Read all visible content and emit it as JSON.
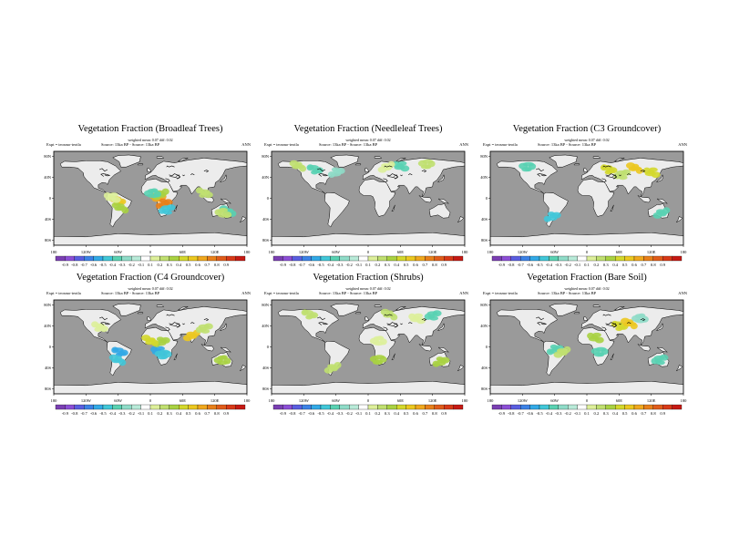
{
  "colors": {
    "ocean": "#9a9a9a",
    "land": "#ececec",
    "scale": [
      "#7b3fb3",
      "#8c4fd6",
      "#5a5ee0",
      "#3c82e6",
      "#32a9e6",
      "#41c7d8",
      "#59d2b2",
      "#8fdcc8",
      "#b8ead8",
      "#ffffff",
      "#ddef9a",
      "#c0e070",
      "#a9d242",
      "#d4d82c",
      "#ecc820",
      "#f0a81e",
      "#e8801a",
      "#e05c1a",
      "#d83a18",
      "#c61a14"
    ]
  },
  "colorbar": {
    "labels": [
      "-0.9",
      "-0.8",
      "-0.7",
      "-0.6",
      "-0.5",
      "-0.4",
      "-0.3",
      "-0.2",
      "-0.1",
      "0.1",
      "0.2",
      "0.3",
      "0.4",
      "0.5",
      "0.6",
      "0.7",
      "0.8",
      "0.9"
    ]
  },
  "axes": {
    "lon_labels": [
      "180",
      "120W",
      "60W",
      "0",
      "60E",
      "120E",
      "180"
    ],
    "lat_labels": [
      "80N",
      "40N",
      "0",
      "40S",
      "80S"
    ]
  },
  "panels": [
    {
      "title": "Vegetation Fraction (Broadleaf Trees)",
      "weights": "weighted mean: 0.07 diff: 0.02",
      "expt": "Expt = teosmo-teotla",
      "sources": "Source:  13ka BP - Source:  13ka BP",
      "season": "ANN"
    },
    {
      "title": "Vegetation Fraction (Needleleaf Trees)",
      "weights": "weighted mean: 0.07 diff: 0.02",
      "expt": "Expt = teosmo-teotla",
      "sources": "Source:  13ka BP - Source:  13ka BP",
      "season": "ANN"
    },
    {
      "title": "Vegetation Fraction (C3 Groundcover)",
      "weights": "weighted mean: 0.07 diff: 0.02",
      "expt": "Expt = teosmo-teotla",
      "sources": "Source:  13ka BP - Source:  13ka BP",
      "season": "ANN"
    },
    {
      "title": "Vegetation Fraction (C4 Groundcover)",
      "weights": "weighted mean: 0.07 diff: 0.02",
      "expt": "Expt = teosmo-teotla",
      "sources": "Source:  13ka BP - Source:  13ka BP",
      "season": "ANN"
    },
    {
      "title": "Vegetation Fraction (Shrubs)",
      "weights": "weighted mean: 0.07 diff: 0.02",
      "expt": "Expt = teosmo-teotla",
      "sources": "Source:  13ka BP - Source:  13ka BP",
      "season": "ANN"
    },
    {
      "title": "Vegetation Fraction (Bare Soil)",
      "weights": "weighted mean: 0.07 diff: 0.02",
      "expt": "Expt = teosmo-teotla",
      "sources": "Source:  13ka BP - Source:  13ka BP",
      "season": "ANN"
    }
  ],
  "patches": [
    [
      {
        "lon": -62,
        "lat": -5,
        "v": 0.6
      },
      {
        "lon": -55,
        "lat": -18,
        "v": 0.4
      },
      {
        "lon": -72,
        "lat": 2,
        "v": 0.2
      },
      {
        "lon": 15,
        "lat": 2,
        "v": 0.7
      },
      {
        "lon": 25,
        "lat": -10,
        "v": 0.8
      },
      {
        "lon": 20,
        "lat": 8,
        "v": 0.4
      },
      {
        "lon": 30,
        "lat": -22,
        "v": -0.4
      },
      {
        "lon": 5,
        "lat": 10,
        "v": -0.3
      },
      {
        "lon": 100,
        "lat": 10,
        "v": 0.3
      },
      {
        "lon": 145,
        "lat": -25,
        "v": -0.3
      },
      {
        "lon": 135,
        "lat": -28,
        "v": 0.3
      }
    ],
    [
      {
        "lon": -100,
        "lat": 55,
        "v": -0.3
      },
      {
        "lon": -130,
        "lat": 62,
        "v": 0.3
      },
      {
        "lon": 60,
        "lat": 62,
        "v": -0.3
      },
      {
        "lon": 110,
        "lat": 65,
        "v": 0.3
      },
      {
        "lon": -60,
        "lat": 50,
        "v": -0.2
      },
      {
        "lon": 35,
        "lat": 60,
        "v": 0.2
      }
    ],
    [
      {
        "lon": 40,
        "lat": 55,
        "v": 0.5
      },
      {
        "lon": 90,
        "lat": 58,
        "v": 0.6
      },
      {
        "lon": 120,
        "lat": 50,
        "v": 0.5
      },
      {
        "lon": -110,
        "lat": 60,
        "v": -0.3
      },
      {
        "lon": -65,
        "lat": -35,
        "v": -0.4
      },
      {
        "lon": 140,
        "lat": -28,
        "v": -0.3
      },
      {
        "lon": 65,
        "lat": 45,
        "v": 0.3
      }
    ],
    [
      {
        "lon": -58,
        "lat": -10,
        "v": -0.5
      },
      {
        "lon": -60,
        "lat": -25,
        "v": -0.4
      },
      {
        "lon": 15,
        "lat": -8,
        "v": -0.5
      },
      {
        "lon": 25,
        "lat": -15,
        "v": -0.4
      },
      {
        "lon": 20,
        "lat": 10,
        "v": 0.4
      },
      {
        "lon": 78,
        "lat": 22,
        "v": 0.6
      },
      {
        "lon": 100,
        "lat": 35,
        "v": 0.3
      },
      {
        "lon": 135,
        "lat": -25,
        "v": 0.4
      },
      {
        "lon": -95,
        "lat": 38,
        "v": 0.2
      },
      {
        "lon": 0,
        "lat": 12,
        "v": 0.5
      }
    ],
    [
      {
        "lon": -110,
        "lat": 62,
        "v": 0.3
      },
      {
        "lon": 40,
        "lat": 62,
        "v": 0.3
      },
      {
        "lon": 90,
        "lat": 55,
        "v": 0.2
      },
      {
        "lon": 20,
        "lat": -25,
        "v": 0.4
      },
      {
        "lon": 135,
        "lat": -28,
        "v": 0.4
      },
      {
        "lon": -65,
        "lat": -40,
        "v": 0.3
      },
      {
        "lon": 120,
        "lat": 60,
        "v": -0.3
      },
      {
        "lon": 20,
        "lat": 12,
        "v": 0.2
      }
    ],
    [
      {
        "lon": 60,
        "lat": 40,
        "v": 0.5
      },
      {
        "lon": 80,
        "lat": 45,
        "v": 0.6
      },
      {
        "lon": 15,
        "lat": 18,
        "v": 0.4
      },
      {
        "lon": 25,
        "lat": -10,
        "v": -0.3
      },
      {
        "lon": -60,
        "lat": -5,
        "v": -0.3
      },
      {
        "lon": -45,
        "lat": -10,
        "v": 0.3
      },
      {
        "lon": 135,
        "lat": -25,
        "v": -0.3
      },
      {
        "lon": 100,
        "lat": 55,
        "v": -0.2
      }
    ]
  ]
}
